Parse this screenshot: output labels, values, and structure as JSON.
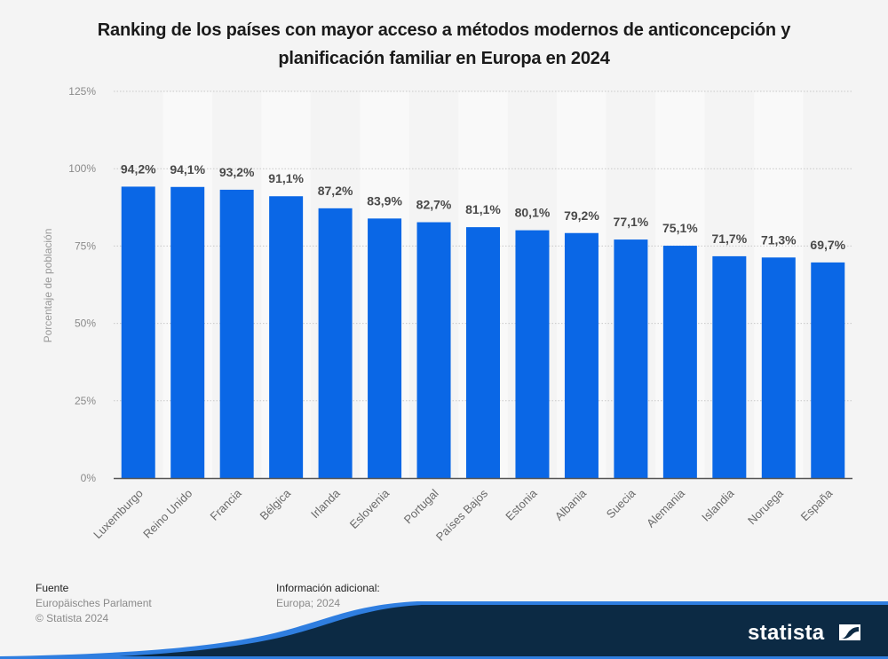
{
  "title_lines": [
    "Ranking de los países con mayor acceso a métodos modernos de anticoncepción y",
    "planificación familiar en Europa en 2024"
  ],
  "colors": {
    "bar": "#0a67e6",
    "band_light": "#f9f9f9",
    "background": "#f4f4f4",
    "brand_dark": "#0c2a44",
    "brand_accent": "#2f7ee0"
  },
  "chart_data": {
    "type": "bar",
    "title": "Ranking de los países con mayor acceso a métodos modernos de anticoncepción y planificación familiar en Europa en 2024",
    "xlabel": "",
    "ylabel": "Porcentaje de población",
    "ylim": [
      0,
      125
    ],
    "yticks": [
      0,
      25,
      50,
      75,
      100,
      125
    ],
    "ytick_labels": [
      "0%",
      "25%",
      "50%",
      "75%",
      "100%",
      "125%"
    ],
    "grid": true,
    "categories": [
      "Luxemburgo",
      "Reino Unido",
      "Francia",
      "Bélgica",
      "Irlanda",
      "Eslovenia",
      "Portugal",
      "Países Bajos",
      "Estonia",
      "Albania",
      "Suecia",
      "Alemania",
      "Islandia",
      "Noruega",
      "España"
    ],
    "values": [
      94.2,
      94.1,
      93.2,
      91.1,
      87.2,
      83.9,
      82.7,
      81.1,
      80.1,
      79.2,
      77.1,
      75.1,
      71.7,
      71.3,
      69.7
    ],
    "data_labels": [
      "94,2%",
      "94,1%",
      "93,2%",
      "91,1%",
      "87,2%",
      "83,9%",
      "82,7%",
      "81,1%",
      "80,1%",
      "79,2%",
      "77,1%",
      "75,1%",
      "71,7%",
      "71,3%",
      "69,7%"
    ]
  },
  "footer": {
    "source_heading": "Fuente",
    "source_lines": [
      "Europäisches Parlament",
      "© Statista 2024"
    ],
    "info_heading": "Información adicional:",
    "info_lines": [
      "Europa; 2024"
    ]
  },
  "brand": {
    "name": "statista",
    "icon": "statista-logo-icon"
  }
}
